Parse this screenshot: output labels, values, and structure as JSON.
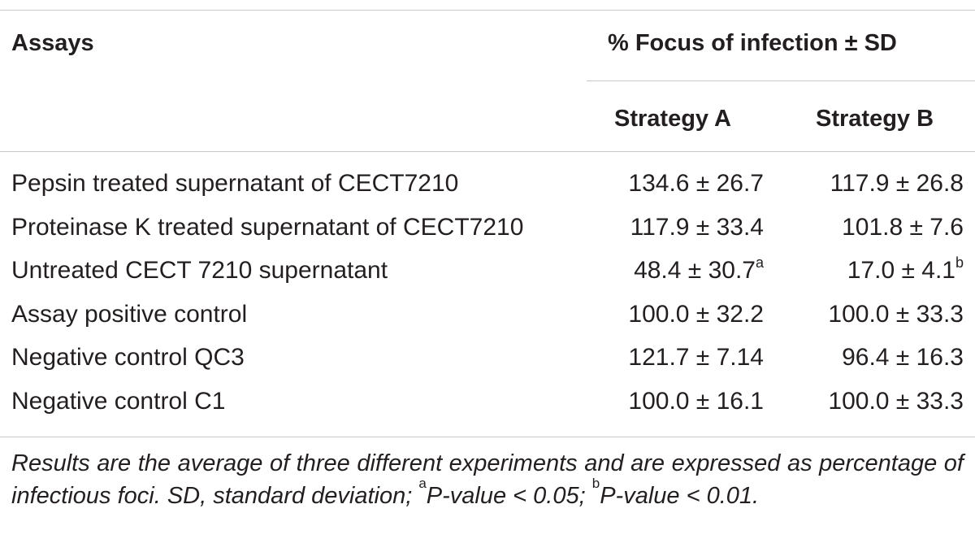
{
  "headers": {
    "assays": "Assays",
    "group": "% Focus of infection ± SD",
    "strategy_a": "Strategy A",
    "strategy_b": "Strategy B"
  },
  "rows": [
    {
      "assay": "Pepsin treated supernatant of CECT7210",
      "a": "134.6 ± 26.7",
      "a_sup": "",
      "b": "117.9 ± 26.8",
      "b_sup": ""
    },
    {
      "assay": "Proteinase K treated supernatant of CECT7210",
      "a": "117.9 ± 33.4",
      "a_sup": "",
      "b": "101.8 ± 7.6",
      "b_sup": ""
    },
    {
      "assay": "Untreated CECT 7210 supernatant",
      "a": "48.4 ± 30.7",
      "a_sup": "a",
      "b": "17.0 ± 4.1",
      "b_sup": "b"
    },
    {
      "assay": "Assay positive control",
      "a": "100.0 ± 32.2",
      "a_sup": "",
      "b": "100.0 ± 33.3",
      "b_sup": ""
    },
    {
      "assay": "Negative control QC3",
      "a": "121.7 ± 7.14",
      "a_sup": "",
      "b": "96.4 ± 16.3",
      "b_sup": ""
    },
    {
      "assay": "Negative control C1",
      "a": "100.0 ± 16.1",
      "a_sup": "",
      "b": "100.0 ± 33.3",
      "b_sup": ""
    }
  ],
  "footnote": {
    "text": "Results are the average of three different experiments and are expressed as percentage of infectious foci. SD, standard deviation; ",
    "sup_a": "a",
    "text_a": "P-value < 0.05; ",
    "sup_b": "b",
    "text_b": "P-value < 0.01."
  }
}
